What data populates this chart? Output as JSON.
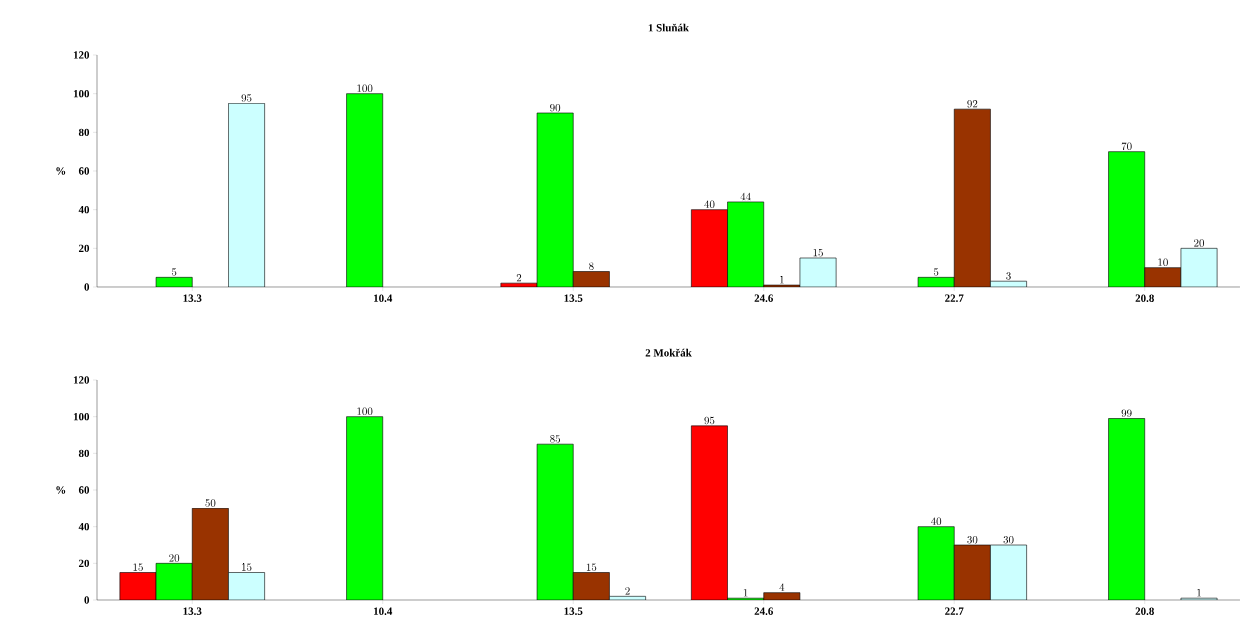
{
  "chart_data": [
    {
      "type": "bar",
      "title": "1 Sluňák",
      "ylabel": "%",
      "categories": [
        "13.3",
        "10.4",
        "13.5",
        "24.6",
        "22.7",
        "20.8"
      ],
      "ylim": [
        0,
        120
      ],
      "yticks": [
        0,
        20,
        40,
        60,
        80,
        100,
        120
      ],
      "data_labels": true,
      "series": [
        {
          "color": "#ff0000",
          "values": [
            null,
            null,
            2,
            40,
            null,
            null
          ]
        },
        {
          "color": "#00ff00",
          "values": [
            5,
            100,
            90,
            44,
            5,
            70
          ]
        },
        {
          "color": "#993300",
          "values": [
            null,
            null,
            8,
            1,
            92,
            10
          ]
        },
        {
          "color": "#ccffff",
          "values": [
            95,
            null,
            null,
            15,
            3,
            20
          ]
        }
      ]
    },
    {
      "type": "bar",
      "title": "2 Mokřák",
      "ylabel": "%",
      "categories": [
        "13.3",
        "10.4",
        "13.5",
        "24.6",
        "22.7",
        "20.8"
      ],
      "ylim": [
        0,
        120
      ],
      "yticks": [
        0,
        20,
        40,
        60,
        80,
        100,
        120
      ],
      "data_labels": true,
      "series": [
        {
          "color": "#ff0000",
          "values": [
            15,
            null,
            null,
            95,
            null,
            null
          ]
        },
        {
          "color": "#00ff00",
          "values": [
            20,
            100,
            85,
            1,
            40,
            99
          ]
        },
        {
          "color": "#993300",
          "values": [
            50,
            null,
            15,
            4,
            30,
            null
          ]
        },
        {
          "color": "#ccffff",
          "values": [
            15,
            null,
            2,
            null,
            30,
            1
          ]
        }
      ]
    }
  ]
}
